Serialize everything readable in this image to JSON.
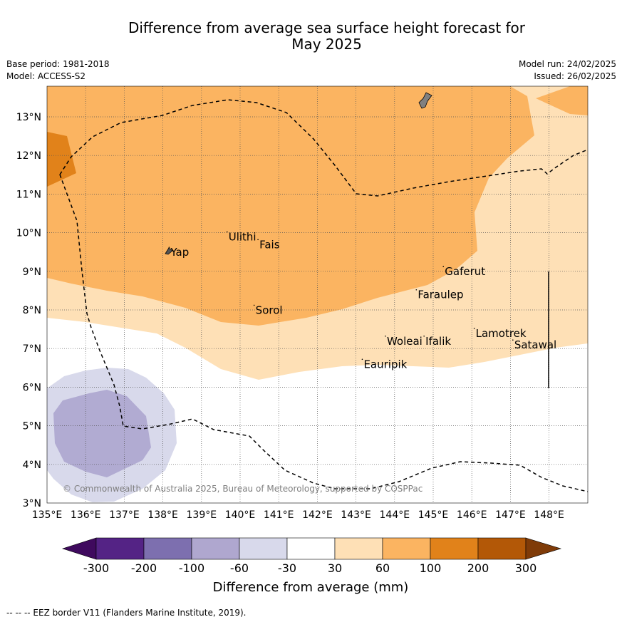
{
  "title_line1": "Difference from average sea surface height forecast for",
  "title_line2": "May 2025",
  "meta": {
    "base_period": "Base period: 1981-2018",
    "model": "Model: ACCESS-S2",
    "model_run": "Model run: 24/02/2025",
    "issued": "Issued: 26/02/2025"
  },
  "copyright": "© Commonwealth of Australia 2025, Bureau of Meteorology, supported by COSPPac",
  "footer": "-- -- -- EEZ border V11 (Flanders Marine Institute, 2019).",
  "map": {
    "lon_range": [
      135,
      149
    ],
    "lat_range": [
      3,
      13.8
    ],
    "lon_ticks": [
      "135°E",
      "136°E",
      "137°E",
      "138°E",
      "139°E",
      "140°E",
      "141°E",
      "142°E",
      "143°E",
      "144°E",
      "145°E",
      "146°E",
      "147°E",
      "148°E"
    ],
    "lat_ticks": [
      "3°N",
      "4°N",
      "5°N",
      "6°N",
      "7°N",
      "8°N",
      "9°N",
      "10°N",
      "11°N",
      "12°N",
      "13°N"
    ],
    "places": [
      {
        "name": "Yap",
        "lon": 138.2,
        "lat": 9.4
      },
      {
        "name": "Ulithi",
        "lon": 139.7,
        "lat": 9.8
      },
      {
        "name": "Fais",
        "lon": 140.5,
        "lat": 9.6
      },
      {
        "name": "Sorol",
        "lon": 140.4,
        "lat": 7.9
      },
      {
        "name": "Gaferut",
        "lon": 145.3,
        "lat": 8.9
      },
      {
        "name": "Faraulep",
        "lon": 144.6,
        "lat": 8.3
      },
      {
        "name": "Woleai",
        "lon": 143.8,
        "lat": 7.1
      },
      {
        "name": "Ifalik",
        "lon": 144.8,
        "lat": 7.1
      },
      {
        "name": "Lamotrek",
        "lon": 146.1,
        "lat": 7.3
      },
      {
        "name": "Satawal",
        "lon": 147.1,
        "lat": 7.0
      },
      {
        "name": "Eauripik",
        "lon": 143.2,
        "lat": 6.5
      }
    ]
  },
  "colorbar": {
    "label": "Difference from average (mm)",
    "ticks": [
      "-300",
      "-200",
      "-100",
      "-60",
      "-30",
      "30",
      "60",
      "100",
      "200",
      "300"
    ],
    "colors": [
      "#3f0a5e",
      "#542385",
      "#7d6faf",
      "#afa7cf",
      "#d8d9eb",
      "#ffffff",
      "#fee0b6",
      "#fbb461",
      "#e1821a",
      "#b35807",
      "#7f3b08"
    ]
  }
}
